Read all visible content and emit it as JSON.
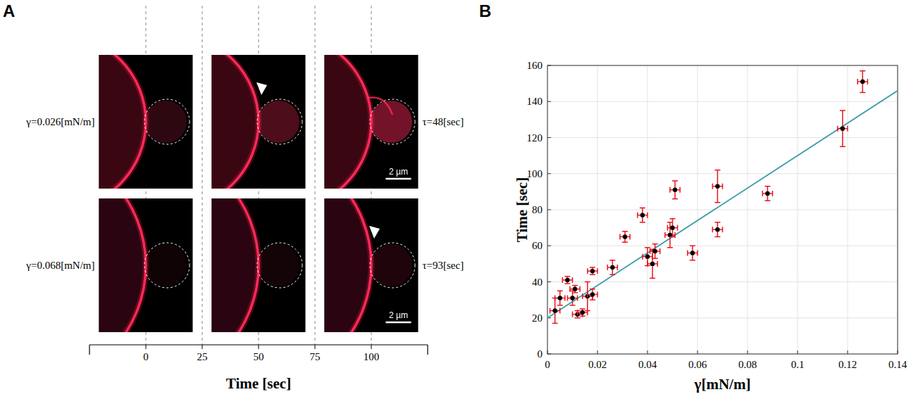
{
  "chart_data": [
    {
      "type": "image_grid",
      "panel": "A",
      "xlabel": "Time [sec]",
      "xlim": [
        -25,
        125
      ],
      "xticks": [
        0,
        25,
        50,
        75,
        100
      ],
      "rows": [
        {
          "label": "γ=0.026[mN/m]",
          "tau_label": "τ=48[sec]",
          "scale_bar": "2 µm",
          "images": [
            {
              "time": 0
            },
            {
              "time": 50,
              "marker": "arrow"
            },
            {
              "time": 100
            }
          ]
        },
        {
          "label": "γ=0.068[mN/m]",
          "tau_label": "τ=93[sec]",
          "scale_bar": "2 µm",
          "images": [
            {
              "time": 0
            },
            {
              "time": 50
            },
            {
              "time": 100,
              "marker": "arrow"
            }
          ]
        }
      ]
    },
    {
      "type": "scatter",
      "panel": "B",
      "xlabel": "γ[mN/m]",
      "ylabel": "Time [sec]",
      "xlim": [
        0,
        0.14
      ],
      "ylim": [
        0,
        160
      ],
      "xticks": [
        0,
        0.02,
        0.04,
        0.06,
        0.08,
        0.1,
        0.12,
        0.14
      ],
      "yticks": [
        0,
        20,
        40,
        60,
        80,
        100,
        120,
        140,
        160
      ],
      "grid": true,
      "series": [
        {
          "type": "scatter",
          "color": "#000000",
          "marker": "circle",
          "x": [
            0.003,
            0.005,
            0.008,
            0.01,
            0.011,
            0.012,
            0.014,
            0.016,
            0.018,
            0.018,
            0.026,
            0.031,
            0.038,
            0.04,
            0.042,
            0.043,
            0.049,
            0.05,
            0.051,
            0.058,
            0.068,
            0.068,
            0.088,
            0.118,
            0.126
          ],
          "values": [
            24,
            31,
            41,
            31,
            36,
            22,
            23,
            32,
            46,
            33,
            48,
            65,
            77,
            54,
            50,
            57,
            66,
            70,
            91,
            56,
            93,
            69,
            89,
            125,
            151
          ],
          "x_error": [
            0.002,
            0.002,
            0.002,
            0.002,
            0.002,
            0.002,
            0.002,
            0.002,
            0.002,
            0.002,
            0.002,
            0.002,
            0.002,
            0.002,
            0.002,
            0.002,
            0.002,
            0.002,
            0.002,
            0.002,
            0.002,
            0.002,
            0.002,
            0.002,
            0.002
          ],
          "error": [
            7,
            4,
            2,
            4,
            2,
            2,
            2,
            8,
            2,
            3,
            4,
            3,
            4,
            5,
            8,
            4,
            7,
            5,
            5,
            4,
            9,
            4,
            4,
            10,
            6
          ]
        },
        {
          "type": "line",
          "color": "#3d9ca5",
          "x": [
            0,
            0.14
          ],
          "values": [
            20,
            146
          ]
        }
      ]
    }
  ]
}
